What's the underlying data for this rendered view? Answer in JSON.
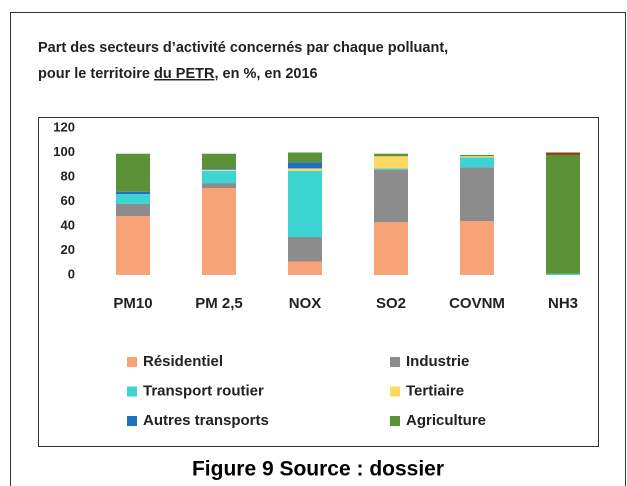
{
  "chart_data": {
    "type": "stacked_bar",
    "title": "Part des secteurs d’activité concernés par chaque polluant,",
    "subtitle_parts": [
      "pour le territoire ",
      "du PETR",
      ", en %, en 2016"
    ],
    "caption": "Figure 9 Source : dossier",
    "categories": [
      "PM10",
      "PM 2,5",
      "NOX",
      "SO2",
      "COVNM",
      "NH3"
    ],
    "series": [
      {
        "name": "Résidentiel",
        "color": "#f8a278",
        "values": [
          48,
          71,
          11,
          43,
          44,
          0
        ]
      },
      {
        "name": "Industrie",
        "color": "#8c8c8c",
        "values": [
          10,
          4,
          20,
          43,
          44,
          0
        ]
      },
      {
        "name": "Transport routier",
        "color": "#3dd4d4",
        "values": [
          8,
          10,
          54,
          1,
          8,
          1
        ]
      },
      {
        "name": "Tertiaire",
        "color": "#ffd862",
        "values": [
          0,
          1,
          2,
          10,
          1,
          0
        ]
      },
      {
        "name": "Autres transports",
        "color": "#1f70c1",
        "values": [
          2,
          1,
          5,
          0,
          0,
          0
        ]
      },
      {
        "name": "Agriculture",
        "color": "#5b9137",
        "values": [
          31,
          12,
          8,
          2,
          1,
          97
        ]
      },
      {
        "color": "#8b3f12",
        "values": [
          0,
          0,
          0,
          0,
          0,
          2
        ]
      }
    ],
    "ylim": [
      0,
      120
    ],
    "yticks": [
      0,
      20,
      40,
      60,
      80,
      100,
      120
    ],
    "grid": false
  }
}
